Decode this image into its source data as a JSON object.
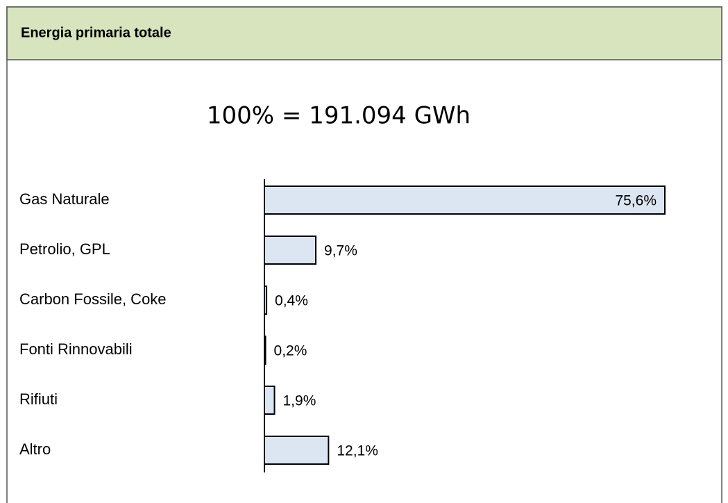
{
  "chart_data": {
    "type": "bar",
    "orientation": "horizontal",
    "title": "Energia primaria totale",
    "subtitle": "100% = 191.094 GWh",
    "categories": [
      "Gas Naturale",
      "Petrolio, GPL",
      "Carbon Fossile, Coke",
      "Fonti Rinnovabili",
      "Rifiuti",
      "Altro"
    ],
    "values": [
      75.6,
      9.7,
      0.4,
      0.2,
      1.9,
      12.1
    ],
    "value_labels": [
      "75,6%",
      "9,7%",
      "0,4%",
      "0,2%",
      "1,9%",
      "12,1%"
    ],
    "color": "#dce6f2"
  }
}
